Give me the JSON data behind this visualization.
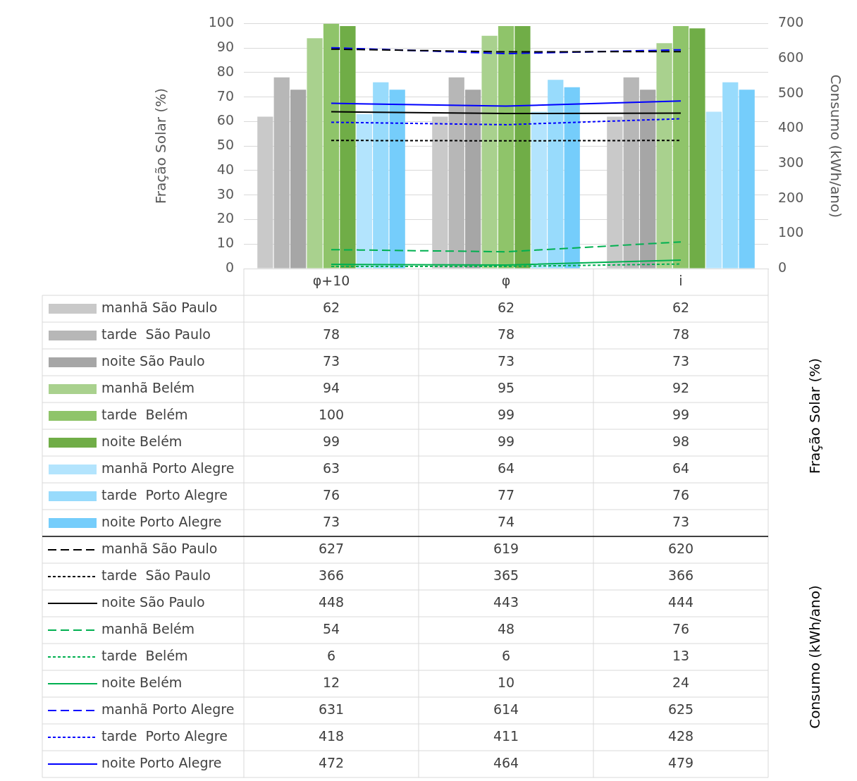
{
  "chart_data": {
    "type": "bar",
    "categories": [
      "φ+10",
      "φ",
      "i"
    ],
    "ylabel": "Fração Solar (%)",
    "y2label": "Consumo (kWh/ano)",
    "ylim": [
      0,
      100
    ],
    "yticks": [
      0,
      10,
      20,
      30,
      40,
      50,
      60,
      70,
      80,
      90,
      100
    ],
    "y2lim": [
      0,
      700
    ],
    "y2ticks": [
      0,
      100,
      200,
      300,
      400,
      500,
      600,
      700
    ],
    "grid": "y",
    "legend": "bottom",
    "data_labels": true,
    "marker": "none",
    "series": [
      {
        "name": "manhã São Paulo",
        "color": "#c9c9c9",
        "values": [
          62,
          62,
          62
        ]
      },
      {
        "name": "tarde  São Paulo",
        "color": "#b7b7b7",
        "values": [
          78,
          78,
          78
        ]
      },
      {
        "name": "noite São Paulo",
        "color": "#a6a6a6",
        "values": [
          73,
          73,
          73
        ]
      },
      {
        "name": "manhã Belém",
        "color": "#a9d18e",
        "values": [
          94,
          95,
          92
        ]
      },
      {
        "name": "tarde  Belém",
        "color": "#8fc46a",
        "values": [
          100,
          99,
          99
        ]
      },
      {
        "name": "noite Belém",
        "color": "#70ad47",
        "values": [
          99,
          99,
          98
        ]
      },
      {
        "name": "manhã Porto Alegre",
        "color": "#b3e4fd",
        "values": [
          63,
          64,
          64
        ]
      },
      {
        "name": "tarde  Porto Alegre",
        "color": "#98dbfc",
        "values": [
          76,
          77,
          76
        ]
      },
      {
        "name": "noite Porto Alegre",
        "color": "#75cdfb",
        "values": [
          73,
          74,
          73
        ]
      },
      {
        "name": "manhã São Paulo",
        "type": "line",
        "axis": "y2",
        "line_style": "dashed",
        "color": "#000000",
        "values": [
          627,
          619,
          620
        ]
      },
      {
        "name": "tarde  São Paulo",
        "type": "line",
        "axis": "y2",
        "line_style": "dotted",
        "color": "#000000",
        "values": [
          366,
          365,
          366
        ]
      },
      {
        "name": "noite São Paulo",
        "type": "line",
        "axis": "y2",
        "line_style": "solid",
        "color": "#000000",
        "values": [
          448,
          443,
          444
        ]
      },
      {
        "name": "manhã Belém",
        "type": "line",
        "axis": "y2",
        "line_style": "dashed",
        "color": "#00b050",
        "values": [
          54,
          48,
          76
        ]
      },
      {
        "name": "tarde  Belém",
        "type": "line",
        "axis": "y2",
        "line_style": "dotted",
        "color": "#00b050",
        "values": [
          6,
          6,
          13
        ]
      },
      {
        "name": "noite Belém",
        "type": "line",
        "axis": "y2",
        "line_style": "solid",
        "color": "#00b050",
        "values": [
          12,
          10,
          24
        ]
      },
      {
        "name": "manhã Porto Alegre",
        "type": "line",
        "axis": "y2",
        "line_style": "dashed",
        "color": "#0000ff",
        "values": [
          631,
          614,
          625
        ]
      },
      {
        "name": "tarde  Porto Alegre",
        "type": "line",
        "axis": "y2",
        "line_style": "dotted",
        "color": "#0000ff",
        "values": [
          418,
          411,
          428
        ]
      },
      {
        "name": "noite Porto Alegre",
        "type": "line",
        "axis": "y2",
        "line_style": "solid",
        "color": "#0000ff",
        "values": [
          472,
          464,
          479
        ]
      }
    ]
  }
}
